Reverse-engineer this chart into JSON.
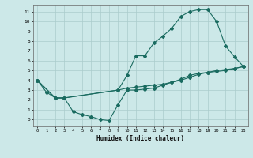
{
  "xlabel": "Humidex (Indice chaleur)",
  "background_color": "#cce8e8",
  "grid_color": "#aacccc",
  "line_color": "#1a6b60",
  "xlim": [
    -0.5,
    23.5
  ],
  "ylim": [
    -0.7,
    11.7
  ],
  "xticks": [
    0,
    1,
    2,
    3,
    4,
    5,
    6,
    7,
    8,
    9,
    10,
    11,
    12,
    13,
    14,
    15,
    16,
    17,
    18,
    19,
    20,
    21,
    22,
    23
  ],
  "yticks": [
    0,
    1,
    2,
    3,
    4,
    5,
    6,
    7,
    8,
    9,
    10,
    11
  ],
  "series1_x": [
    0,
    1,
    2,
    3,
    4,
    5,
    6,
    7,
    8,
    9,
    10,
    11,
    12,
    13,
    14,
    15,
    16,
    17,
    18,
    19,
    20,
    21,
    22,
    23
  ],
  "series1_y": [
    4.0,
    2.8,
    2.2,
    2.2,
    0.8,
    0.5,
    0.3,
    0.0,
    -0.1,
    1.5,
    3.0,
    3.0,
    3.1,
    3.2,
    3.5,
    3.8,
    4.1,
    4.5,
    4.7,
    4.8,
    4.9,
    5.0,
    5.2,
    5.4
  ],
  "series2_x": [
    0,
    2,
    3,
    9,
    10,
    11,
    12,
    13,
    14,
    15,
    16,
    17,
    18,
    19,
    20,
    21,
    22,
    23
  ],
  "series2_y": [
    4.0,
    2.2,
    2.2,
    3.0,
    4.5,
    6.5,
    6.5,
    7.8,
    8.5,
    9.3,
    10.5,
    11.0,
    11.2,
    11.2,
    10.0,
    7.5,
    6.4,
    5.4
  ],
  "series3_x": [
    0,
    2,
    3,
    9,
    10,
    11,
    12,
    13,
    14,
    15,
    16,
    17,
    18,
    19,
    20,
    21,
    22,
    23
  ],
  "series3_y": [
    4.0,
    2.2,
    2.2,
    3.0,
    3.2,
    3.3,
    3.4,
    3.5,
    3.6,
    3.8,
    4.0,
    4.3,
    4.6,
    4.8,
    5.0,
    5.1,
    5.2,
    5.4
  ]
}
